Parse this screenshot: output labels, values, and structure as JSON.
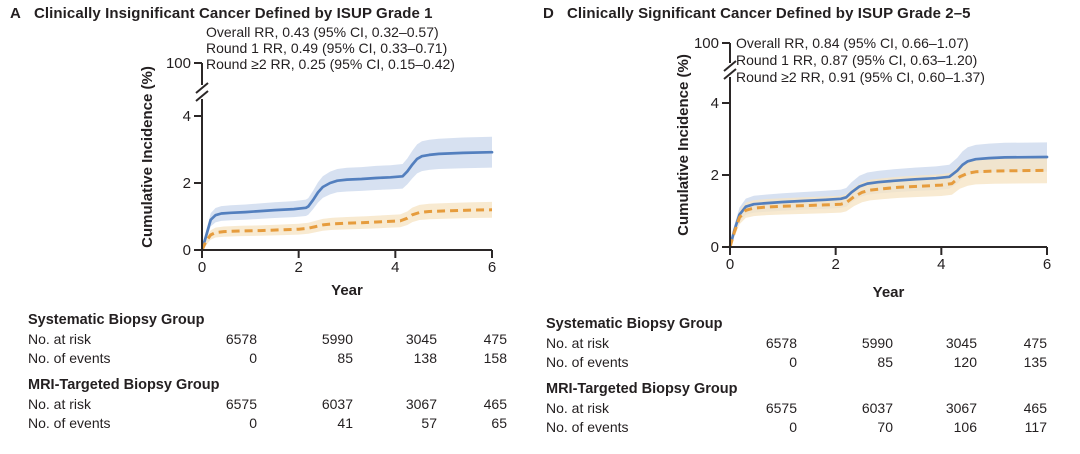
{
  "figure": {
    "panels": [
      {
        "letter": "A",
        "title": "Clinically Insignificant Cancer Defined by ISUP Grade 1",
        "annotations": [
          "Overall RR, 0.43 (95% CI, 0.32–0.57)",
          "Round 1 RR, 0.49 (95% CI, 0.33–0.71)",
          "Round ≥2 RR, 0.25 (95% CI, 0.15–0.42)"
        ],
        "risk_table": {
          "groups": [
            {
              "name": "Systematic Biopsy Group",
              "rows": [
                {
                  "label": "No. at risk",
                  "values": [
                    "6578",
                    "5990",
                    "3045",
                    "475"
                  ]
                },
                {
                  "label": "No. of events",
                  "values": [
                    "0",
                    "85",
                    "138",
                    "158"
                  ]
                }
              ]
            },
            {
              "name": "MRI-Targeted Biopsy Group",
              "rows": [
                {
                  "label": "No. at risk",
                  "values": [
                    "6575",
                    "6037",
                    "3067",
                    "465"
                  ]
                },
                {
                  "label": "No. of events",
                  "values": [
                    "0",
                    "41",
                    "57",
                    "65"
                  ]
                }
              ]
            }
          ]
        }
      },
      {
        "letter": "D",
        "title": "Clinically Significant Cancer Defined by ISUP Grade 2–5",
        "annotations": [
          "Overall RR, 0.84 (95% CI, 0.66–1.07)",
          "Round 1 RR, 0.87 (95% CI, 0.63–1.20)",
          "Round ≥2 RR, 0.91 (95% CI, 0.60–1.37)"
        ],
        "risk_table": {
          "groups": [
            {
              "name": "Systematic Biopsy Group",
              "rows": [
                {
                  "label": "No. at risk",
                  "values": [
                    "6578",
                    "5990",
                    "3045",
                    "475"
                  ]
                },
                {
                  "label": "No. of events",
                  "values": [
                    "0",
                    "85",
                    "120",
                    "135"
                  ]
                }
              ]
            },
            {
              "name": "MRI-Targeted Biopsy Group",
              "rows": [
                {
                  "label": "No. at risk",
                  "values": [
                    "6575",
                    "6037",
                    "3067",
                    "465"
                  ]
                },
                {
                  "label": "No. of events",
                  "values": [
                    "0",
                    "70",
                    "106",
                    "117"
                  ]
                }
              ]
            }
          ]
        }
      }
    ]
  },
  "chart_data": [
    {
      "type": "line",
      "panel": "A",
      "title": "Clinically Insignificant Cancer Defined by ISUP Grade 1",
      "xlabel": "Year",
      "ylabel": "Cumulative Incidence (%)",
      "x_ticks": [
        0,
        2,
        4,
        6
      ],
      "y_ticks": [
        0,
        2,
        4,
        100
      ],
      "y_axis_break_between": [
        4,
        100
      ],
      "xlim": [
        0,
        6
      ],
      "ylim_displayed": [
        0,
        4.6
      ],
      "grid": "off",
      "legend": "none",
      "ci_band_halfwidth": {
        "base": 0.08,
        "per_unit": 0.13
      },
      "series": [
        {
          "name": "Systematic Biopsy Group",
          "line": "solid",
          "color": "#537fbe",
          "band_color": "#cdd9ee",
          "points": [
            [
              0,
              0
            ],
            [
              0.08,
              0.4
            ],
            [
              0.18,
              0.9
            ],
            [
              0.28,
              1.04
            ],
            [
              0.4,
              1.09
            ],
            [
              0.6,
              1.11
            ],
            [
              0.9,
              1.13
            ],
            [
              1.2,
              1.16
            ],
            [
              1.5,
              1.19
            ],
            [
              1.9,
              1.22
            ],
            [
              2.15,
              1.26
            ],
            [
              2.2,
              1.3
            ],
            [
              2.3,
              1.5
            ],
            [
              2.4,
              1.72
            ],
            [
              2.5,
              1.88
            ],
            [
              2.65,
              2.0
            ],
            [
              2.8,
              2.07
            ],
            [
              3.0,
              2.1
            ],
            [
              3.3,
              2.12
            ],
            [
              3.6,
              2.15
            ],
            [
              3.9,
              2.17
            ],
            [
              4.15,
              2.2
            ],
            [
              4.25,
              2.35
            ],
            [
              4.35,
              2.55
            ],
            [
              4.45,
              2.72
            ],
            [
              4.55,
              2.8
            ],
            [
              4.7,
              2.84
            ],
            [
              4.9,
              2.87
            ],
            [
              5.4,
              2.9
            ],
            [
              6,
              2.92
            ]
          ]
        },
        {
          "name": "MRI-Targeted Biopsy Group",
          "line": "dashed",
          "color": "#e69c3d",
          "band_color": "#f6e5c6",
          "points": [
            [
              0,
              0
            ],
            [
              0.08,
              0.25
            ],
            [
              0.18,
              0.45
            ],
            [
              0.28,
              0.52
            ],
            [
              0.45,
              0.55
            ],
            [
              0.8,
              0.57
            ],
            [
              1.2,
              0.58
            ],
            [
              1.6,
              0.6
            ],
            [
              2.0,
              0.62
            ],
            [
              2.2,
              0.65
            ],
            [
              2.35,
              0.7
            ],
            [
              2.5,
              0.75
            ],
            [
              2.7,
              0.78
            ],
            [
              3.0,
              0.8
            ],
            [
              3.4,
              0.82
            ],
            [
              3.8,
              0.85
            ],
            [
              4.1,
              0.87
            ],
            [
              4.25,
              0.95
            ],
            [
              4.35,
              1.05
            ],
            [
              4.5,
              1.12
            ],
            [
              4.7,
              1.15
            ],
            [
              5.1,
              1.17
            ],
            [
              5.6,
              1.19
            ],
            [
              6,
              1.2
            ]
          ]
        }
      ]
    },
    {
      "type": "line",
      "panel": "D",
      "title": "Clinically Significant Cancer Defined by ISUP Grade 2–5",
      "xlabel": "Year",
      "ylabel": "Cumulative Incidence (%)",
      "x_ticks": [
        0,
        2,
        4,
        6
      ],
      "y_ticks": [
        0,
        2,
        4,
        100
      ],
      "y_axis_break_between": [
        4,
        100
      ],
      "xlim": [
        0,
        6
      ],
      "ylim_displayed": [
        0,
        4.6
      ],
      "grid": "off",
      "legend": "none",
      "ci_band_halfwidth": {
        "base": 0.08,
        "per_unit": 0.13
      },
      "series": [
        {
          "name": "Systematic Biopsy Group",
          "line": "solid",
          "color": "#537fbe",
          "band_color": "#cdd9ee",
          "points": [
            [
              0,
              0
            ],
            [
              0.08,
              0.45
            ],
            [
              0.18,
              0.9
            ],
            [
              0.3,
              1.12
            ],
            [
              0.45,
              1.19
            ],
            [
              0.7,
              1.22
            ],
            [
              1.0,
              1.25
            ],
            [
              1.4,
              1.28
            ],
            [
              1.8,
              1.31
            ],
            [
              2.1,
              1.34
            ],
            [
              2.2,
              1.38
            ],
            [
              2.3,
              1.52
            ],
            [
              2.45,
              1.68
            ],
            [
              2.6,
              1.76
            ],
            [
              2.8,
              1.8
            ],
            [
              3.1,
              1.84
            ],
            [
              3.5,
              1.88
            ],
            [
              3.9,
              1.91
            ],
            [
              4.15,
              1.95
            ],
            [
              4.3,
              2.12
            ],
            [
              4.4,
              2.28
            ],
            [
              4.5,
              2.38
            ],
            [
              4.65,
              2.44
            ],
            [
              4.9,
              2.47
            ],
            [
              5.2,
              2.49
            ],
            [
              6,
              2.5
            ]
          ]
        },
        {
          "name": "MRI-Targeted Biopsy Group",
          "line": "dashed",
          "color": "#e69c3d",
          "band_color": "#f6e5c6",
          "points": [
            [
              0,
              0
            ],
            [
              0.08,
              0.4
            ],
            [
              0.18,
              0.82
            ],
            [
              0.3,
              1.02
            ],
            [
              0.45,
              1.08
            ],
            [
              0.7,
              1.11
            ],
            [
              1.0,
              1.13
            ],
            [
              1.4,
              1.15
            ],
            [
              1.8,
              1.17
            ],
            [
              2.1,
              1.19
            ],
            [
              2.2,
              1.23
            ],
            [
              2.35,
              1.4
            ],
            [
              2.5,
              1.52
            ],
            [
              2.65,
              1.58
            ],
            [
              2.9,
              1.62
            ],
            [
              3.2,
              1.66
            ],
            [
              3.6,
              1.69
            ],
            [
              4.0,
              1.72
            ],
            [
              4.2,
              1.76
            ],
            [
              4.35,
              1.95
            ],
            [
              4.5,
              2.05
            ],
            [
              4.65,
              2.09
            ],
            [
              5.0,
              2.11
            ],
            [
              6,
              2.13
            ]
          ]
        }
      ]
    }
  ],
  "colors": {
    "text": "#231f20",
    "axis": "#2b2727",
    "background": "#ffffff",
    "systematic_blue": "#537fbe",
    "mri_orange": "#e69c3d",
    "blue_ci_band": "#cdd9ee",
    "orange_ci_band": "#f6e5c6"
  }
}
